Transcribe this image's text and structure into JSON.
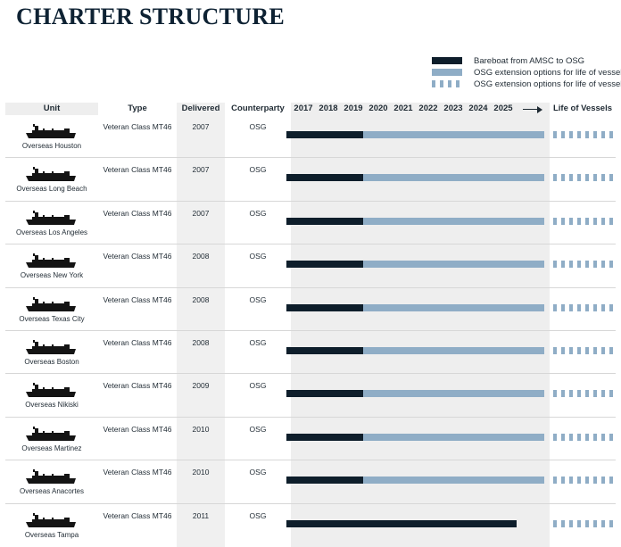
{
  "title": "CHARTER STRUCTURE",
  "legend": [
    {
      "label": "Bareboat from AMSC to OSG",
      "style": "solid-dark",
      "color": "#0e1e2b"
    },
    {
      "label": "OSG extension options for life of vessels",
      "style": "solid-light",
      "color": "#8fadc6"
    },
    {
      "label": "OSG extension options for life of vessels",
      "style": "dashed-light",
      "color": "#8fadc6"
    }
  ],
  "headers": {
    "unit": "Unit",
    "type": "Type",
    "delivered": "Delivered",
    "counterparty": "Counterparty",
    "years": [
      "2017",
      "2018",
      "2019",
      "2020",
      "2021",
      "2022",
      "2023",
      "2024",
      "2025"
    ],
    "life": "Life of Vessels"
  },
  "rows": [
    {
      "unit": "Overseas Houston",
      "type": "Veteran Class MT46",
      "delivered": "2007",
      "counterparty": "OSG",
      "bareboat_end": 2020,
      "options_end": 2026,
      "life": true
    },
    {
      "unit": "Overseas Long Beach",
      "type": "Veteran Class MT46",
      "delivered": "2007",
      "counterparty": "OSG",
      "bareboat_end": 2020,
      "options_end": 2026,
      "life": true
    },
    {
      "unit": "Overseas Los Angeles",
      "type": "Veteran Class MT46",
      "delivered": "2007",
      "counterparty": "OSG",
      "bareboat_end": 2020,
      "options_end": 2026,
      "life": true
    },
    {
      "unit": "Overseas New York",
      "type": "Veteran Class MT46",
      "delivered": "2008",
      "counterparty": "OSG",
      "bareboat_end": 2020,
      "options_end": 2026,
      "life": true
    },
    {
      "unit": "Overseas Texas City",
      "type": "Veteran Class MT46",
      "delivered": "2008",
      "counterparty": "OSG",
      "bareboat_end": 2020,
      "options_end": 2026,
      "life": true
    },
    {
      "unit": "Overseas Boston",
      "type": "Veteran Class MT46",
      "delivered": "2008",
      "counterparty": "OSG",
      "bareboat_end": 2020,
      "options_end": 2026,
      "life": true
    },
    {
      "unit": "Overseas Nikiski",
      "type": "Veteran Class MT46",
      "delivered": "2009",
      "counterparty": "OSG",
      "bareboat_end": 2020,
      "options_end": 2026,
      "life": true
    },
    {
      "unit": "Overseas Martinez",
      "type": "Veteran Class MT46",
      "delivered": "2010",
      "counterparty": "OSG",
      "bareboat_end": 2020,
      "options_end": 2026,
      "life": true
    },
    {
      "unit": "Overseas Anacortes",
      "type": "Veteran Class MT46",
      "delivered": "2010",
      "counterparty": "OSG",
      "bareboat_end": 2020,
      "options_end": 2026,
      "life": true
    },
    {
      "unit": "Overseas Tampa",
      "type": "Veteran Class MT46",
      "delivered": "2011",
      "counterparty": "OSG",
      "bareboat_end": 2026,
      "options_end": 2026,
      "life": true
    }
  ]
}
